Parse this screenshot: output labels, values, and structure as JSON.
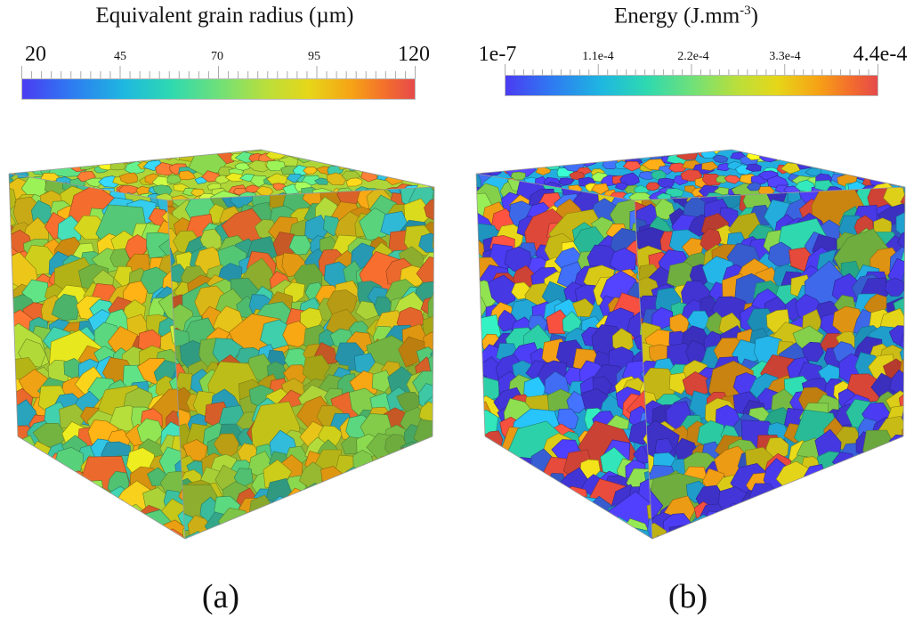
{
  "panels": [
    {
      "id": "a",
      "colorbar_title": "Equivalent grain radius (µm)",
      "tick_labels": [
        "20",
        "45",
        "70",
        "95",
        "120"
      ],
      "caption": "(a)"
    },
    {
      "id": "b",
      "colorbar_title_main": "Energy (J.mm",
      "colorbar_title_sup": "-3",
      "colorbar_title_end": ")",
      "tick_labels": [
        "1e-7",
        "1.1e-4",
        "2.2e-4",
        "3.3e-4",
        "4.4e-4"
      ],
      "caption": "(b)"
    }
  ],
  "colormap": [
    "#4b3cf2",
    "#2f78f2",
    "#1eb8e0",
    "#2fd9b0",
    "#6ee07a",
    "#b9df3c",
    "#e6d619",
    "#f6a215",
    "#f36c2e",
    "#e54a4a"
  ],
  "cube_palettes": {
    "a": [
      "#2fb8d6",
      "#3fcaa8",
      "#5ad67e",
      "#8ad84e",
      "#b3dc3a",
      "#d6d61c",
      "#e8c419",
      "#f2a413",
      "#f36c2e"
    ],
    "b": [
      "#4b3cf2",
      "#4b3cf2",
      "#4b3cf2",
      "#4b3cf2",
      "#3f6cf0",
      "#24b3e6",
      "#2fd9b0",
      "#8ad84e",
      "#e6d619",
      "#f6a215",
      "#f04e3e"
    ]
  }
}
